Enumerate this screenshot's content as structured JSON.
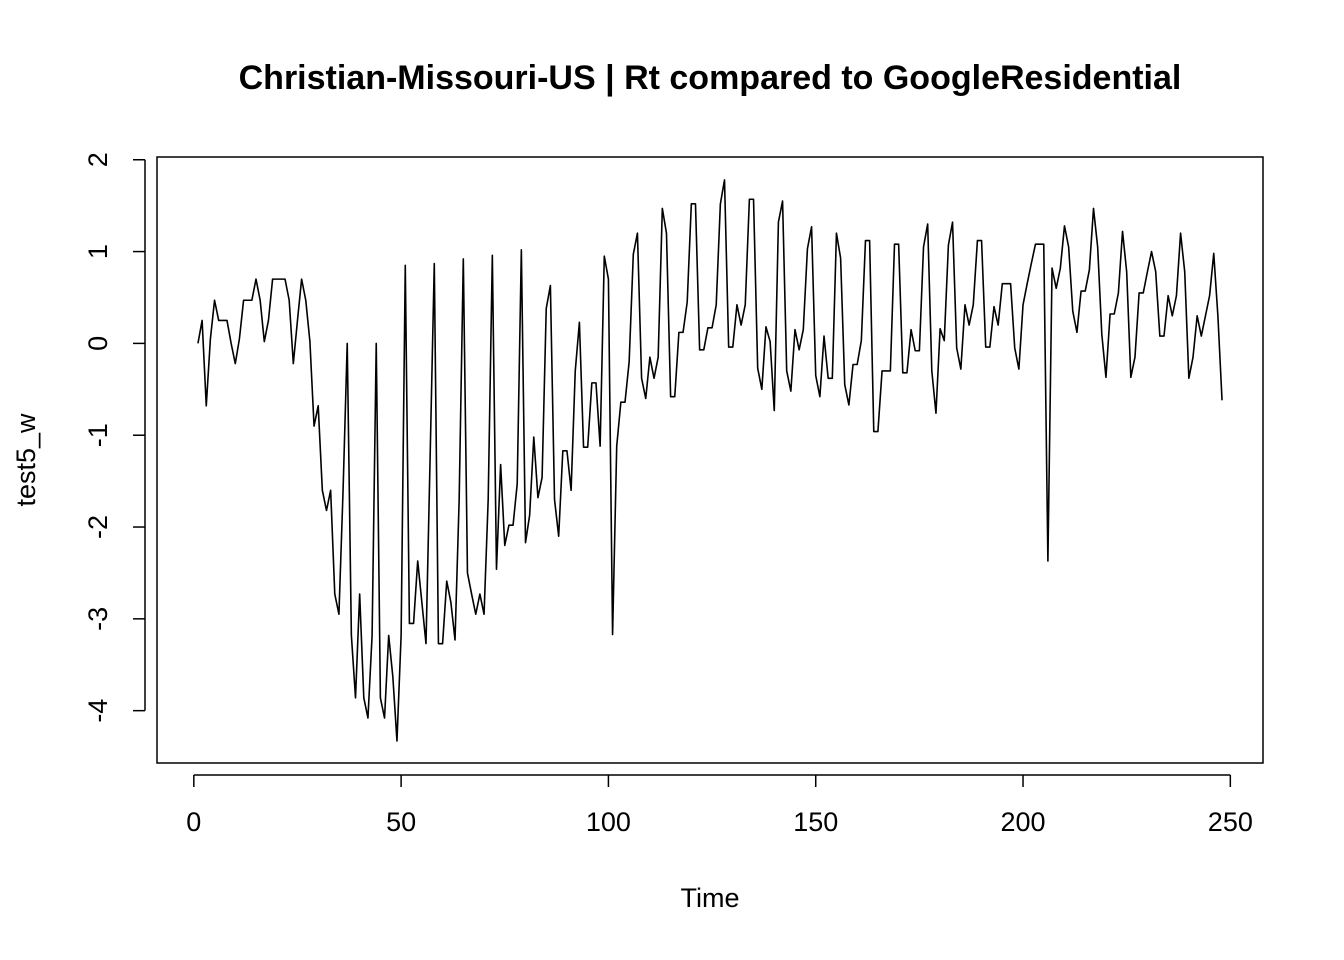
{
  "chart_data": {
    "type": "line",
    "title": "Christian-Missouri-US | Rt compared to GoogleResidential",
    "x_label": "Time",
    "y_label": "test5_w",
    "x": [
      1,
      2,
      3,
      4,
      5,
      6,
      7,
      8,
      9,
      10,
      11,
      12,
      13,
      14,
      15,
      16,
      17,
      18,
      19,
      20,
      21,
      22,
      23,
      24,
      25,
      26,
      27,
      28,
      29,
      30,
      31,
      32,
      33,
      34,
      35,
      36,
      37,
      38,
      39,
      40,
      41,
      42,
      43,
      44,
      45,
      46,
      47,
      48,
      49,
      50,
      51,
      52,
      53,
      54,
      55,
      56,
      57,
      58,
      59,
      60,
      61,
      62,
      63,
      64,
      65,
      66,
      67,
      68,
      69,
      70,
      71,
      72,
      73,
      74,
      75,
      76,
      77,
      78,
      79,
      80,
      81,
      82,
      83,
      84,
      85,
      86,
      87,
      88,
      89,
      90,
      91,
      92,
      93,
      94,
      95,
      96,
      97,
      98,
      99,
      100,
      101,
      102,
      103,
      104,
      105,
      106,
      107,
      108,
      109,
      110,
      111,
      112,
      113,
      114,
      115,
      116,
      117,
      118,
      119,
      120,
      121,
      122,
      123,
      124,
      125,
      126,
      127,
      128,
      129,
      130,
      131,
      132,
      133,
      134,
      135,
      136,
      137,
      138,
      139,
      140,
      141,
      142,
      143,
      144,
      145,
      146,
      147,
      148,
      149,
      150,
      151,
      152,
      153,
      154,
      155,
      156,
      157,
      158,
      159,
      160,
      161,
      162,
      163,
      164,
      165,
      166,
      167,
      168,
      169,
      170,
      171,
      172,
      173,
      174,
      175,
      176,
      177,
      178,
      179,
      180,
      181,
      182,
      183,
      184,
      185,
      186,
      187,
      188,
      189,
      190,
      191,
      192,
      193,
      194,
      195,
      196,
      197,
      198,
      199,
      200,
      201,
      202,
      203,
      204,
      205,
      206,
      207,
      208,
      209,
      210,
      211,
      212,
      213,
      214,
      215,
      216,
      217,
      218,
      219,
      220,
      221,
      222,
      223,
      224,
      225,
      226,
      227,
      228,
      229,
      230,
      231,
      232,
      233,
      234,
      235,
      236,
      237,
      238,
      239,
      240,
      241,
      242,
      243,
      244,
      245,
      246,
      247,
      248
    ],
    "series": [
      {
        "name": "test5_w",
        "color": "#000000",
        "values": [
          0,
          0.25,
          -0.68,
          0.05,
          0.47,
          0.25,
          0.25,
          0.25,
          0,
          -0.22,
          0.05,
          0.47,
          0.47,
          0.47,
          0.7,
          0.47,
          0.02,
          0.25,
          0.7,
          0.7,
          0.7,
          0.7,
          0.47,
          -0.22,
          0.25,
          0.7,
          0.47,
          0.02,
          -0.9,
          -0.68,
          -1.6,
          -1.82,
          -1.6,
          -2.73,
          -2.95,
          -1.6,
          0,
          -3.18,
          -3.86,
          -2.73,
          -3.86,
          -4.08,
          -3.18,
          0,
          -3.86,
          -4.08,
          -3.18,
          -3.63,
          -4.33,
          -3.18,
          0.85,
          -3.05,
          -3.05,
          -2.37,
          -2.82,
          -3.27,
          -1.23,
          0.87,
          -3.27,
          -3.27,
          -2.59,
          -2.82,
          -3.23,
          -1.7,
          0.92,
          -2.5,
          -2.73,
          -2.95,
          -2.73,
          -2.95,
          -1.7,
          0.96,
          -2.46,
          -1.32,
          -2.2,
          -1.98,
          -1.98,
          -1.53,
          1.02,
          -2.17,
          -1.87,
          -1.02,
          -1.68,
          -1.46,
          0.38,
          0.63,
          -1.7,
          -2.1,
          -1.17,
          -1.17,
          -1.6,
          -0.3,
          0.23,
          -1.13,
          -1.13,
          -0.43,
          -0.43,
          -1.12,
          0.95,
          0.7,
          -3.17,
          -1.12,
          -0.64,
          -0.64,
          -0.2,
          0.97,
          1.2,
          -0.38,
          -0.6,
          -0.15,
          -0.38,
          -0.15,
          1.47,
          1.2,
          -0.58,
          -0.58,
          0.12,
          0.12,
          0.45,
          1.52,
          1.52,
          -0.07,
          -0.07,
          0.17,
          0.17,
          0.42,
          1.52,
          1.78,
          -0.04,
          -0.04,
          0.42,
          0.2,
          0.42,
          1.57,
          1.57,
          -0.27,
          -0.5,
          0.18,
          0.02,
          -0.73,
          1.32,
          1.55,
          -0.3,
          -0.52,
          0.15,
          -0.07,
          0.15,
          1.03,
          1.27,
          -0.35,
          -0.58,
          0.08,
          -0.38,
          -0.38,
          1.2,
          0.93,
          -0.45,
          -0.67,
          -0.23,
          -0.23,
          0.03,
          1.12,
          1.12,
          -0.96,
          -0.96,
          -0.3,
          -0.3,
          -0.3,
          1.08,
          1.08,
          -0.32,
          -0.32,
          0.15,
          -0.08,
          -0.08,
          1.05,
          1.3,
          -0.3,
          -0.76,
          0.16,
          0.03,
          1.07,
          1.32,
          -0.05,
          -0.28,
          0.42,
          0.2,
          0.42,
          1.12,
          1.12,
          -0.04,
          -0.04,
          0.4,
          0.2,
          0.65,
          0.65,
          0.65,
          -0.05,
          -0.28,
          0.42,
          0.65,
          0.87,
          1.08,
          1.08,
          1.08,
          -2.37,
          0.82,
          0.6,
          0.82,
          1.28,
          1.05,
          0.35,
          0.12,
          0.57,
          0.57,
          0.8,
          1.47,
          1.05,
          0.1,
          -0.37,
          0.32,
          0.32,
          0.55,
          1.22,
          0.78,
          -0.37,
          -0.15,
          0.55,
          0.55,
          0.78,
          1.0,
          0.78,
          0.08,
          0.08,
          0.52,
          0.3,
          0.52,
          1.2,
          0.78,
          -0.38,
          -0.15,
          0.3,
          0.08,
          0.3,
          0.52,
          0.98,
          0.3,
          -0.62
        ]
      }
    ],
    "xlim": [
      -8.88,
      257.88
    ],
    "ylim": [
      -4.57,
      2.03
    ],
    "xticks": [
      0,
      50,
      100,
      150,
      200,
      250
    ],
    "yticks": [
      -4,
      -3,
      -2,
      -1,
      0,
      1,
      2
    ]
  }
}
